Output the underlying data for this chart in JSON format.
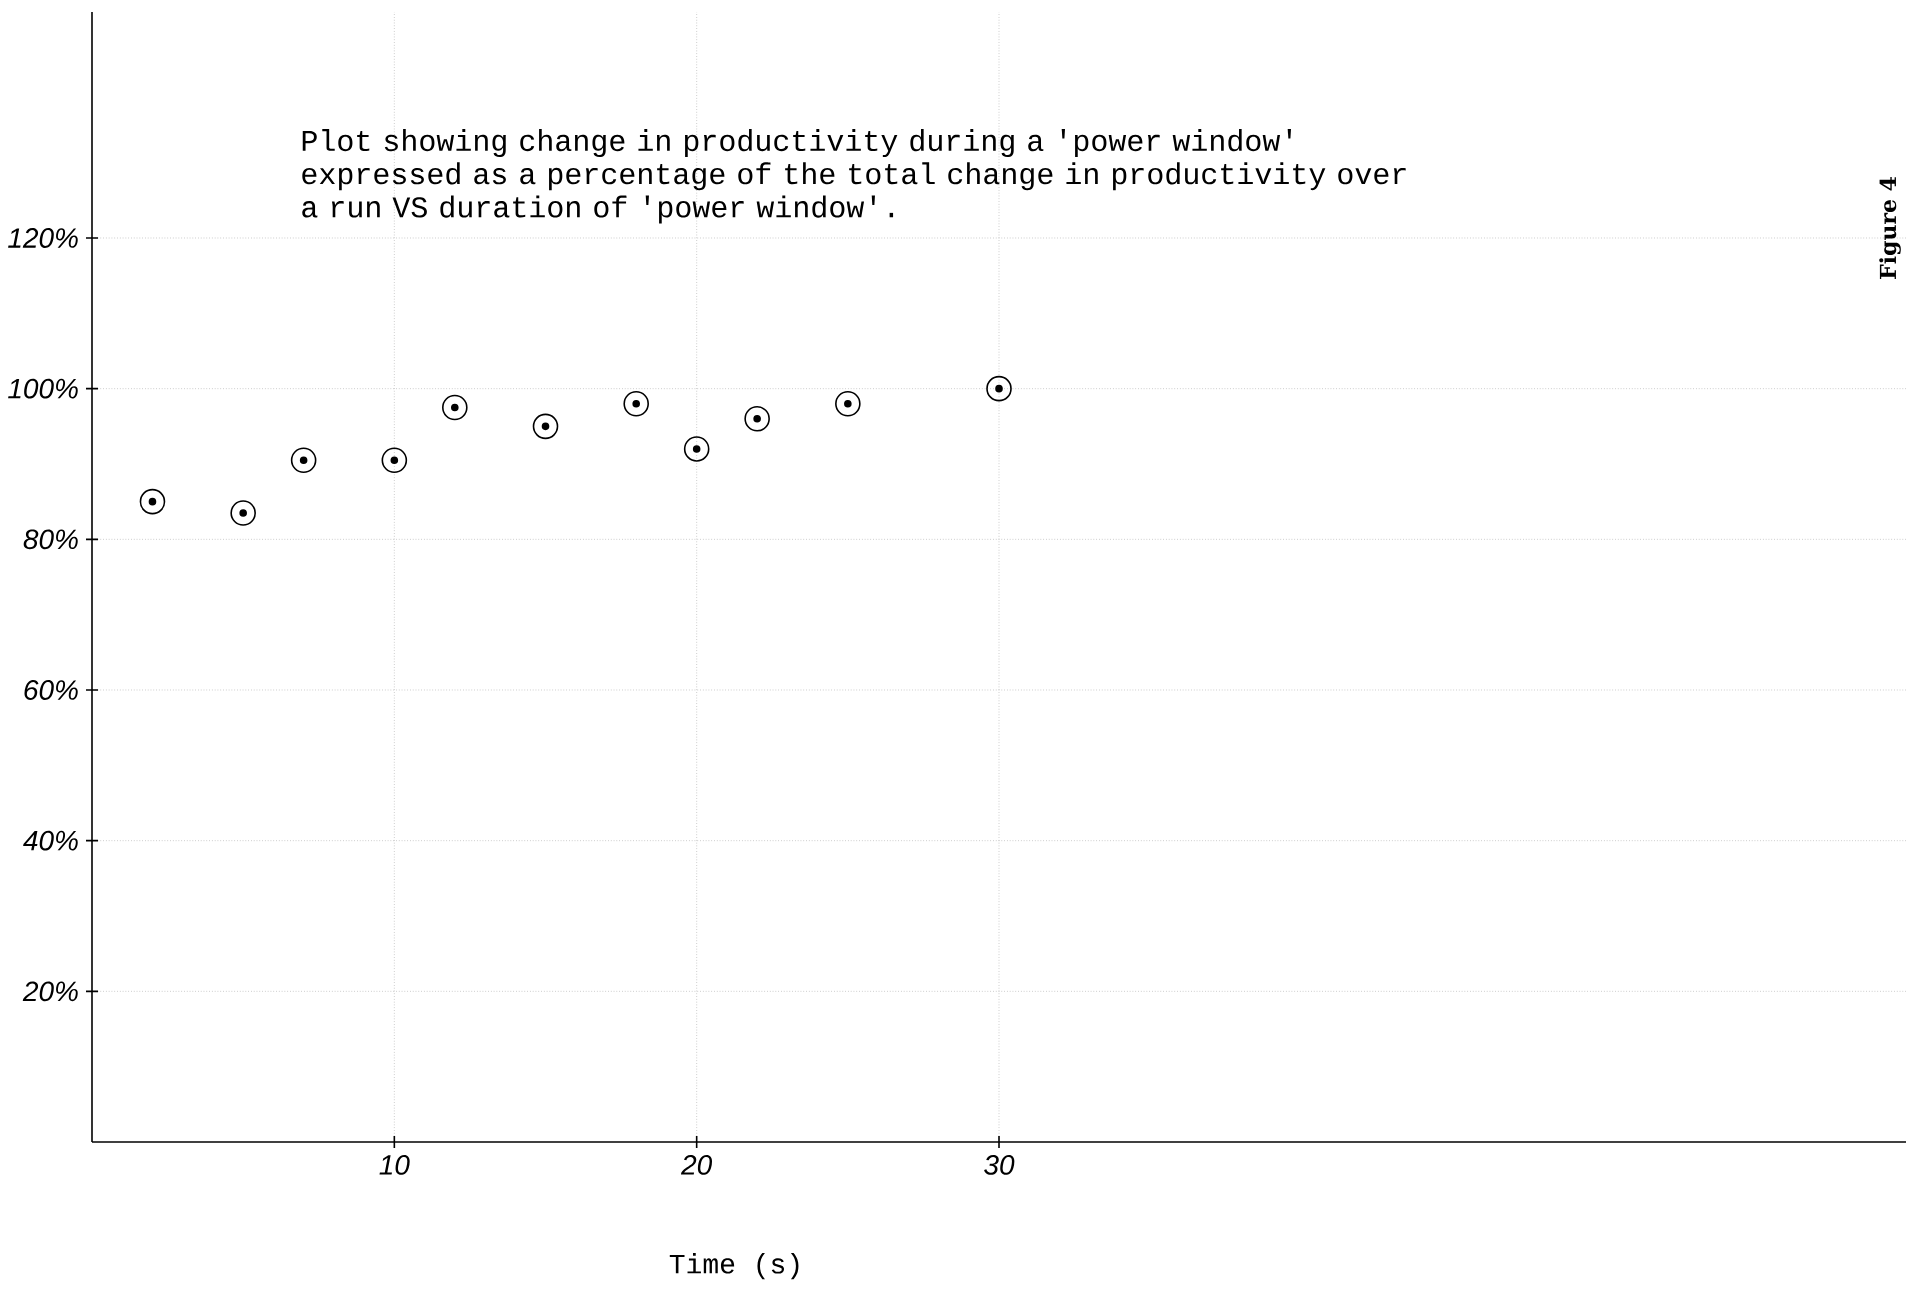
{
  "chart_data": {
    "type": "scatter",
    "title": "Plot showing change in productivity during a 'power window' expressed as a percentage of the total change in productivity over a run VS duration of 'power window'.",
    "xlabel": "Time (s)",
    "annotations": [
      "Figure 4"
    ],
    "x": [
      2,
      5,
      7,
      10,
      12,
      15,
      18,
      20,
      22,
      25,
      30
    ],
    "values": [
      85,
      83.5,
      90.5,
      90.5,
      97.5,
      95,
      98,
      92,
      96,
      98,
      100
    ],
    "color": "#000000",
    "marker": "circle",
    "xlim": [
      0,
      60
    ],
    "xticks": [
      10,
      20,
      30
    ],
    "ylim": [
      0,
      150
    ],
    "yticks": [
      {
        "value": 20,
        "label": "20%"
      },
      {
        "value": 40,
        "label": "40%"
      },
      {
        "value": 60,
        "label": "60%"
      },
      {
        "value": 80,
        "label": "80%"
      },
      {
        "value": 100,
        "label": "100%"
      },
      {
        "value": 120,
        "label": "120%"
      }
    ],
    "grid": true
  }
}
